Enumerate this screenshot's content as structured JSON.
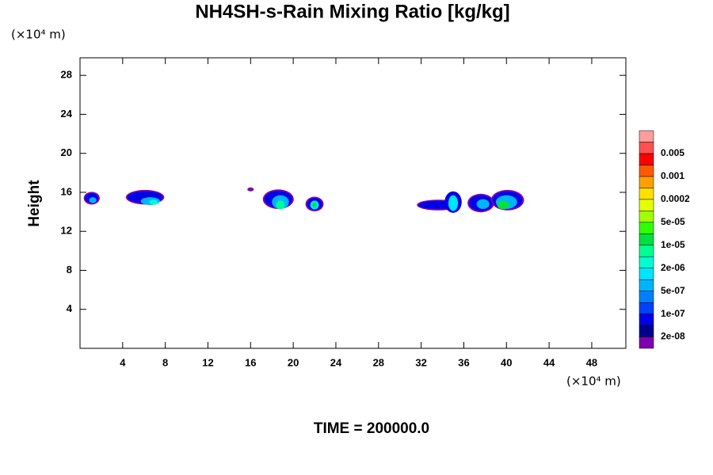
{
  "chart_data": {
    "type": "contour",
    "title": "NH4SH-s-Rain Mixing Ratio [kg/kg]",
    "y_label": "Height",
    "x_unit": "(×10⁴ m)",
    "y_unit": "(×10⁴ m)",
    "footer": "TIME = 200000.0",
    "xlim": [
      0,
      51.2
    ],
    "ylim": [
      0,
      29.8
    ],
    "xticks": [
      4,
      8,
      12,
      16,
      20,
      24,
      28,
      32,
      36,
      40,
      44,
      48
    ],
    "yticks": [
      4,
      8,
      12,
      16,
      20,
      24,
      28
    ],
    "colors": [
      "#7f00b2",
      "#00008f",
      "#0000e6",
      "#0040ff",
      "#0080ff",
      "#00b4ff",
      "#00e4ff",
      "#00ffd0",
      "#00ff90",
      "#00e040",
      "#30ff00",
      "#a0ff00",
      "#e4ff00",
      "#ffe000",
      "#ffa000",
      "#ff5a00",
      "#ff0000",
      "#ff5050",
      "#ff9c9c"
    ],
    "colorbar_labels": [
      {
        "value": 2e-08,
        "label": "2e-08"
      },
      {
        "value": 1e-07,
        "label": "1e-07"
      },
      {
        "value": 5e-07,
        "label": "5e-07"
      },
      {
        "value": 2e-06,
        "label": "2e-06"
      },
      {
        "value": 1e-05,
        "label": "1e-05"
      },
      {
        "value": 5e-05,
        "label": "5e-05"
      },
      0.0002,
      0.001,
      0.005
    ],
    "cells": [
      {
        "x": 1.1,
        "y": 15.4,
        "rx": 0.75,
        "ry": 0.65,
        "level": 0
      },
      {
        "x": 1.1,
        "y": 15.4,
        "rx": 0.6,
        "ry": 0.5,
        "level": 2
      },
      {
        "x": 1.2,
        "y": 15.2,
        "rx": 0.35,
        "ry": 0.3,
        "level": 5
      },
      {
        "x": 6.1,
        "y": 15.5,
        "rx": 1.8,
        "ry": 0.75,
        "level": 0
      },
      {
        "x": 6.1,
        "y": 15.5,
        "rx": 1.65,
        "ry": 0.6,
        "level": 2
      },
      {
        "x": 6.6,
        "y": 15.1,
        "rx": 0.9,
        "ry": 0.4,
        "level": 5
      },
      {
        "x": 6.9,
        "y": 15.0,
        "rx": 0.4,
        "ry": 0.25,
        "level": 7
      },
      {
        "x": 16.0,
        "y": 16.3,
        "rx": 0.3,
        "ry": 0.2,
        "level": 0
      },
      {
        "x": 18.6,
        "y": 15.3,
        "rx": 1.45,
        "ry": 1.0,
        "level": 0
      },
      {
        "x": 18.6,
        "y": 15.3,
        "rx": 1.3,
        "ry": 0.85,
        "level": 2
      },
      {
        "x": 18.8,
        "y": 15.0,
        "rx": 0.8,
        "ry": 0.7,
        "level": 5
      },
      {
        "x": 18.8,
        "y": 14.7,
        "rx": 0.4,
        "ry": 0.45,
        "level": 8
      },
      {
        "x": 22.0,
        "y": 14.8,
        "rx": 0.85,
        "ry": 0.75,
        "level": 0
      },
      {
        "x": 22.0,
        "y": 14.8,
        "rx": 0.7,
        "ry": 0.6,
        "level": 2
      },
      {
        "x": 22.0,
        "y": 14.7,
        "rx": 0.4,
        "ry": 0.45,
        "level": 6
      },
      {
        "x": 22.0,
        "y": 14.7,
        "rx": 0.2,
        "ry": 0.25,
        "level": 9
      },
      {
        "x": 33.6,
        "y": 14.7,
        "rx": 2.0,
        "ry": 0.55,
        "level": 0
      },
      {
        "x": 33.6,
        "y": 14.7,
        "rx": 1.85,
        "ry": 0.42,
        "level": 2
      },
      {
        "x": 35.0,
        "y": 15.0,
        "rx": 0.8,
        "ry": 1.1,
        "level": 2
      },
      {
        "x": 35.0,
        "y": 14.9,
        "rx": 0.45,
        "ry": 0.8,
        "level": 6
      },
      {
        "x": 37.6,
        "y": 14.9,
        "rx": 1.25,
        "ry": 0.95,
        "level": 0
      },
      {
        "x": 37.6,
        "y": 14.9,
        "rx": 1.1,
        "ry": 0.8,
        "level": 2
      },
      {
        "x": 37.8,
        "y": 14.8,
        "rx": 0.6,
        "ry": 0.5,
        "level": 5
      },
      {
        "x": 40.1,
        "y": 15.2,
        "rx": 1.55,
        "ry": 1.05,
        "level": 0
      },
      {
        "x": 40.1,
        "y": 15.2,
        "rx": 1.4,
        "ry": 0.9,
        "level": 2
      },
      {
        "x": 40.0,
        "y": 15.0,
        "rx": 1.0,
        "ry": 0.7,
        "level": 5
      },
      {
        "x": 39.7,
        "y": 14.7,
        "rx": 0.55,
        "ry": 0.45,
        "level": 9
      }
    ]
  }
}
